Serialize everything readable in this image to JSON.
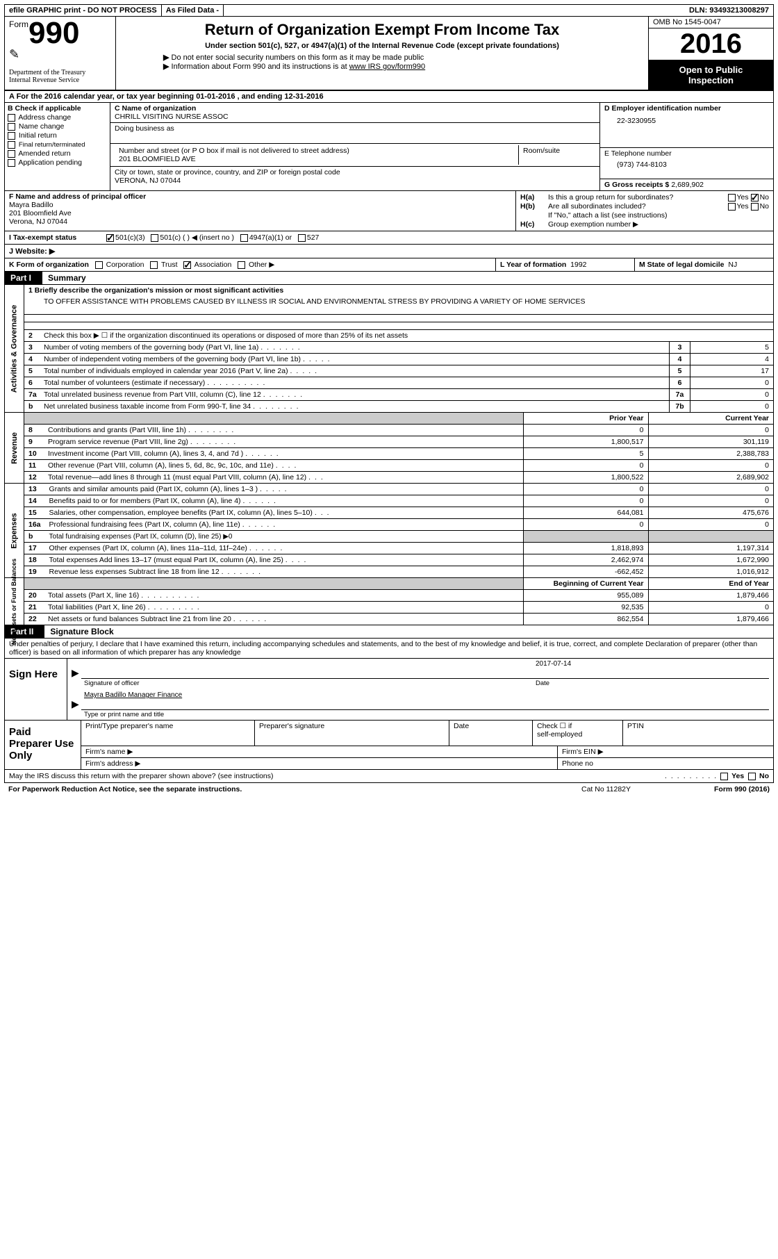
{
  "topbar": {
    "efile": "efile GRAPHIC print - DO NOT PROCESS",
    "asfiled": "As Filed Data -",
    "dln_label": "DLN:",
    "dln": "93493213008297"
  },
  "header": {
    "form_label": "Form",
    "form_num": "990",
    "dept1": "Department of the Treasury",
    "dept2": "Internal Revenue Service",
    "title": "Return of Organization Exempt From Income Tax",
    "subtitle": "Under section 501(c), 527, or 4947(a)(1) of the Internal Revenue Code (except private foundations)",
    "note1": "Do not enter social security numbers on this form as it may be made public",
    "note2_pre": "Information about Form 990 and its instructions is at ",
    "note2_link": "www IRS gov/form990",
    "omb": "OMB No 1545-0047",
    "year": "2016",
    "open1": "Open to Public",
    "open2": "Inspection"
  },
  "rowA": "A   For the 2016 calendar year, or tax year beginning 01-01-2016   , and ending 12-31-2016",
  "colB": {
    "label": "B Check if applicable",
    "items": [
      "Address change",
      "Name change",
      "Initial return",
      "Final return/terminated",
      "Amended return",
      "Application pending"
    ]
  },
  "colC": {
    "name_label": "C Name of organization",
    "name": "CHRILL VISITING NURSE ASSOC",
    "dba_label": "Doing business as",
    "street_label": "Number and street (or P O  box if mail is not delivered to street address)",
    "room_label": "Room/suite",
    "street": "201 BLOOMFIELD AVE",
    "city_label": "City or town, state or province, country, and ZIP or foreign postal code",
    "city": "VERONA, NJ  07044"
  },
  "colD": {
    "ein_label": "D Employer identification number",
    "ein": "22-3230955",
    "tel_label": "E Telephone number",
    "tel": "(973) 744-8103",
    "gross_label": "G Gross receipts $",
    "gross": "2,689,902"
  },
  "colF": {
    "label": "F  Name and address of principal officer",
    "name": "Mayra Badillo",
    "street": "201 Bloomfield Ave",
    "city": "Verona, NJ  07044"
  },
  "colH": {
    "ha_label": "H(a)",
    "ha_text": "Is this a group return for subordinates?",
    "hb_label": "H(b)",
    "hb_text": "Are all subordinates included?",
    "hb_note": "If \"No,\" attach a list  (see instructions)",
    "hc_label": "H(c)",
    "hc_text": "Group exemption number ▶",
    "yes": "Yes",
    "no": "No"
  },
  "rowI": {
    "label": "I   Tax-exempt status",
    "opt1": "501(c)(3)",
    "opt2": "501(c) (   ) ◀ (insert no )",
    "opt3": "4947(a)(1) or",
    "opt4": "527"
  },
  "rowJ": {
    "label": "J   Website: ▶"
  },
  "rowK": {
    "label": "K Form of organization",
    "opts": [
      "Corporation",
      "Trust",
      "Association",
      "Other ▶"
    ],
    "checked_idx": 2
  },
  "rowL": {
    "label": "L Year of formation",
    "val": "1992"
  },
  "rowM": {
    "label": "M State of legal domicile",
    "val": "NJ"
  },
  "partI": {
    "tab": "Part I",
    "title": "Summary"
  },
  "mission": {
    "q": "1  Briefly describe the organization's mission or most significant activities",
    "text": "TO OFFER ASSISTANCE WITH PROBLEMS CAUSED BY ILLNESS IR SOCIAL AND ENVIRONMENTAL STRESS BY PROVIDING A VARIETY OF HOME SERVICES"
  },
  "ag_label": "Activities & Governance",
  "rev_label": "Revenue",
  "exp_label": "Expenses",
  "na_label": "Net Assets or Fund Balances",
  "lines_ag": [
    {
      "n": "2",
      "t": "Check this box ▶ ☐ if the organization discontinued its operations or disposed of more than 25% of its net assets"
    },
    {
      "n": "3",
      "t": "Number of voting members of the governing body (Part VI, line 1a)",
      "box": "3",
      "v": "5"
    },
    {
      "n": "4",
      "t": "Number of independent voting members of the governing body (Part VI, line 1b)",
      "box": "4",
      "v": "4"
    },
    {
      "n": "5",
      "t": "Total number of individuals employed in calendar year 2016 (Part V, line 2a)",
      "box": "5",
      "v": "17"
    },
    {
      "n": "6",
      "t": "Total number of volunteers (estimate if necessary)",
      "box": "6",
      "v": "0"
    },
    {
      "n": "7a",
      "t": "Total unrelated business revenue from Part VIII, column (C), line 12",
      "box": "7a",
      "v": "0"
    },
    {
      "n": "b",
      "t": "Net unrelated business taxable income from Form 990-T, line 34",
      "box": "7b",
      "v": "0"
    }
  ],
  "py_hdr": "Prior Year",
  "cy_hdr": "Current Year",
  "lines_rev": [
    {
      "n": "8",
      "t": "Contributions and grants (Part VIII, line 1h)",
      "py": "0",
      "cy": "0"
    },
    {
      "n": "9",
      "t": "Program service revenue (Part VIII, line 2g)",
      "py": "1,800,517",
      "cy": "301,119"
    },
    {
      "n": "10",
      "t": "Investment income (Part VIII, column (A), lines 3, 4, and 7d )",
      "py": "5",
      "cy": "2,388,783"
    },
    {
      "n": "11",
      "t": "Other revenue (Part VIII, column (A), lines 5, 6d, 8c, 9c, 10c, and 11e)",
      "py": "0",
      "cy": "0"
    },
    {
      "n": "12",
      "t": "Total revenue—add lines 8 through 11 (must equal Part VIII, column (A), line 12)",
      "py": "1,800,522",
      "cy": "2,689,902"
    }
  ],
  "lines_exp": [
    {
      "n": "13",
      "t": "Grants and similar amounts paid (Part IX, column (A), lines 1–3 )",
      "py": "0",
      "cy": "0"
    },
    {
      "n": "14",
      "t": "Benefits paid to or for members (Part IX, column (A), line 4)",
      "py": "0",
      "cy": "0"
    },
    {
      "n": "15",
      "t": "Salaries, other compensation, employee benefits (Part IX, column (A), lines 5–10)",
      "py": "644,081",
      "cy": "475,676"
    },
    {
      "n": "16a",
      "t": "Professional fundraising fees (Part IX, column (A), line 11e)",
      "py": "0",
      "cy": "0"
    },
    {
      "n": "b",
      "t": "Total fundraising expenses (Part IX, column (D), line 25) ▶0",
      "shade": true
    },
    {
      "n": "17",
      "t": "Other expenses (Part IX, column (A), lines 11a–11d, 11f–24e)",
      "py": "1,818,893",
      "cy": "1,197,314"
    },
    {
      "n": "18",
      "t": "Total expenses  Add lines 13–17 (must equal Part IX, column (A), line 25)",
      "py": "2,462,974",
      "cy": "1,672,990"
    },
    {
      "n": "19",
      "t": "Revenue less expenses  Subtract line 18 from line 12",
      "py": "-662,452",
      "cy": "1,016,912"
    }
  ],
  "bcy_hdr": "Beginning of Current Year",
  "eoy_hdr": "End of Year",
  "lines_na": [
    {
      "n": "20",
      "t": "Total assets (Part X, line 16)",
      "py": "955,089",
      "cy": "1,879,466"
    },
    {
      "n": "21",
      "t": "Total liabilities (Part X, line 26)",
      "py": "92,535",
      "cy": "0"
    },
    {
      "n": "22",
      "t": "Net assets or fund balances  Subtract line 21 from line 20",
      "py": "862,554",
      "cy": "1,879,466"
    }
  ],
  "partII": {
    "tab": "Part II",
    "title": "Signature Block"
  },
  "sig_decl": "Under penalties of perjury, I declare that I have examined this return, including accompanying schedules and statements, and to the best of my knowledge and belief, it is true, correct, and complete  Declaration of preparer (other than officer) is based on all information of which preparer has any knowledge",
  "sign": {
    "label": "Sign Here",
    "sig_cap": "Signature of officer",
    "date_val": "2017-07-14",
    "date_cap": "Date",
    "name_val": "Mayra Badillo  Manager Finance",
    "name_cap": "Type or print name and title"
  },
  "prep": {
    "label": "Paid Preparer Use Only",
    "h1": "Print/Type preparer's name",
    "h2": "Preparer's signature",
    "h3": "Date",
    "h4a": "Check ☐ if",
    "h4b": "self-employed",
    "h5": "PTIN",
    "firm_name": "Firm's name   ▶",
    "firm_ein": "Firm's EIN ▶",
    "firm_addr": "Firm's address ▶",
    "phone": "Phone no"
  },
  "irs_discuss": "May the IRS discuss this return with the preparer shown above? (see instructions)",
  "footer": {
    "left": "For Paperwork Reduction Act Notice, see the separate instructions.",
    "mid": "Cat No 11282Y",
    "right": "Form 990 (2016)"
  }
}
